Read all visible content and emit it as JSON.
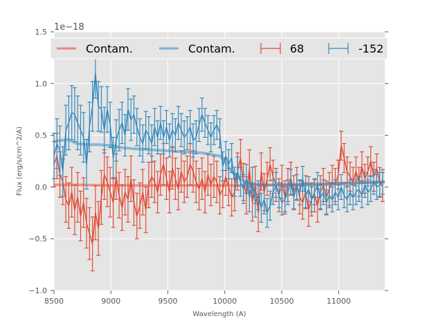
{
  "chart_data": {
    "type": "line",
    "title": "",
    "xlabel": "Wavelength (A)",
    "ylabel": "Flux (erg/s/cm^2/A)",
    "y_offset_label": "1e−18",
    "y_scale": 1e-18,
    "xlim": [
      8500,
      11405
    ],
    "ylim": [
      -1.0,
      1.5
    ],
    "xticks": [
      8500,
      9000,
      9500,
      10000,
      10500,
      11000
    ],
    "xtick_labels": [
      "8500",
      "9000",
      "9500",
      "10000",
      "10500",
      "11000"
    ],
    "yticks": [
      -1.0,
      -0.5,
      0.0,
      0.5,
      1.0,
      1.5
    ],
    "ytick_labels": [
      "−1.0",
      "−0.5",
      "0.0",
      "0.5",
      "1.0",
      "1.5"
    ],
    "grid": true,
    "legend_position": "top",
    "legend": [
      {
        "label": "Contam.",
        "kind": "line",
        "color": "#E8877A"
      },
      {
        "label": "Contam.",
        "kind": "line",
        "color": "#7FAFD4"
      },
      {
        "label": "68",
        "kind": "errorbar",
        "color": "#E24A33"
      },
      {
        "label": "-152",
        "kind": "errorbar",
        "color": "#348ABD"
      }
    ],
    "series": [
      {
        "name": "Contam.",
        "kind": "contam",
        "color": "#E24A33",
        "x": [
          8500,
          8700,
          9000,
          9300,
          9600,
          9900,
          10200,
          10500,
          10800,
          11100,
          11405
        ],
        "y": [
          0.02,
          0.02,
          0.015,
          0.015,
          0.015,
          0.015,
          0.015,
          0.02,
          0.03,
          0.04,
          0.05
        ]
      },
      {
        "name": "Contam.",
        "kind": "contam",
        "color": "#348ABD",
        "x": [
          8500,
          8560,
          8620,
          8660,
          8700,
          8800,
          8900,
          9000,
          9100,
          9200,
          9350,
          9500,
          9650,
          9800,
          9900,
          9960,
          10000,
          10040,
          10080,
          10120,
          10160,
          10200,
          10260,
          10350,
          10450,
          10600,
          10800,
          11000,
          11200,
          11405
        ],
        "y": [
          0.44,
          0.45,
          0.46,
          0.44,
          0.42,
          0.41,
          0.41,
          0.4,
          0.38,
          0.37,
          0.36,
          0.35,
          0.34,
          0.33,
          0.31,
          0.3,
          0.25,
          0.18,
          0.13,
          0.09,
          0.06,
          0.04,
          0.03,
          0.02,
          0.02,
          0.02,
          0.02,
          0.03,
          0.04,
          0.05
        ]
      },
      {
        "name": "68",
        "kind": "errorbar",
        "color": "#E24A33",
        "x": [
          8500,
          8526,
          8552,
          8578,
          8604,
          8630,
          8656,
          8682,
          8708,
          8734,
          8760,
          8786,
          8812,
          8838,
          8864,
          8890,
          8916,
          8942,
          8968,
          8994,
          9020,
          9046,
          9072,
          9098,
          9124,
          9150,
          9176,
          9202,
          9228,
          9254,
          9280,
          9306,
          9332,
          9358,
          9384,
          9410,
          9436,
          9462,
          9488,
          9514,
          9540,
          9566,
          9592,
          9618,
          9644,
          9670,
          9696,
          9722,
          9748,
          9774,
          9800,
          9826,
          9852,
          9878,
          9904,
          9930,
          9956,
          9982,
          10008,
          10034,
          10060,
          10086,
          10112,
          10138,
          10164,
          10190,
          10216,
          10242,
          10268,
          10294,
          10320,
          10346,
          10372,
          10398,
          10424,
          10450,
          10476,
          10502,
          10528,
          10554,
          10580,
          10606,
          10632,
          10658,
          10684,
          10710,
          10736,
          10762,
          10788,
          10814,
          10840,
          10866,
          10892,
          10918,
          10944,
          10970,
          10996,
          11022,
          11048,
          11074,
          11100,
          11126,
          11152,
          11178,
          11204,
          11230,
          11256,
          11282,
          11308,
          11334,
          11360,
          11386
        ],
        "y": [
          0.22,
          0.3,
          0.12,
          0.05,
          -0.12,
          -0.18,
          -0.05,
          -0.22,
          -0.1,
          -0.28,
          -0.15,
          -0.35,
          -0.45,
          -0.55,
          -0.25,
          -0.4,
          -0.1,
          0.12,
          0.05,
          -0.05,
          -0.15,
          0.1,
          -0.08,
          -0.2,
          -0.05,
          -0.12,
          0.08,
          -0.15,
          -0.28,
          -0.18,
          -0.05,
          -0.22,
          0.02,
          0.1,
          0.05,
          -0.05,
          0.12,
          0.22,
          0.08,
          -0.05,
          0.18,
          0.08,
          -0.02,
          0.15,
          0.05,
          0.1,
          0.22,
          0.15,
          0.05,
          -0.02,
          0.08,
          -0.05,
          0.12,
          0.02,
          0.1,
          0.05,
          -0.08,
          -0.02,
          0.1,
          0.0,
          -0.1,
          -0.05,
          0.15,
          0.28,
          0.05,
          -0.08,
          0.18,
          -0.15,
          0.02,
          -0.25,
          0.15,
          -0.05,
          0.08,
          0.22,
          0.1,
          0.02,
          -0.08,
          0.05,
          -0.1,
          0.02,
          0.08,
          -0.05,
          0.03,
          -0.1,
          -0.15,
          -0.05,
          -0.22,
          -0.12,
          -0.08,
          -0.18,
          -0.05,
          0.02,
          -0.1,
          -0.02,
          0.05,
          0.02,
          0.12,
          0.4,
          0.28,
          0.15,
          0.1,
          0.05,
          0.15,
          0.05,
          0.2,
          0.08,
          0.15,
          0.25,
          0.1,
          0.18,
          0.05,
          0.0
        ],
        "err": [
          0.22,
          0.22,
          0.22,
          0.22,
          0.22,
          0.22,
          0.24,
          0.24,
          0.24,
          0.24,
          0.24,
          0.24,
          0.25,
          0.26,
          0.26,
          0.26,
          0.26,
          0.24,
          0.24,
          0.24,
          0.24,
          0.22,
          0.22,
          0.22,
          0.22,
          0.22,
          0.22,
          0.22,
          0.22,
          0.22,
          0.22,
          0.22,
          0.22,
          0.2,
          0.2,
          0.2,
          0.2,
          0.2,
          0.2,
          0.2,
          0.2,
          0.2,
          0.2,
          0.2,
          0.2,
          0.2,
          0.2,
          0.2,
          0.2,
          0.2,
          0.2,
          0.2,
          0.2,
          0.2,
          0.2,
          0.2,
          0.18,
          0.18,
          0.18,
          0.18,
          0.18,
          0.18,
          0.18,
          0.18,
          0.18,
          0.18,
          0.18,
          0.18,
          0.18,
          0.18,
          0.18,
          0.18,
          0.16,
          0.16,
          0.16,
          0.16,
          0.16,
          0.16,
          0.16,
          0.16,
          0.16,
          0.16,
          0.16,
          0.16,
          0.16,
          0.16,
          0.16,
          0.16,
          0.16,
          0.16,
          0.16,
          0.16,
          0.16,
          0.16,
          0.16,
          0.16,
          0.14,
          0.14,
          0.14,
          0.14,
          0.14,
          0.14,
          0.14,
          0.14,
          0.14,
          0.14,
          0.14,
          0.14,
          0.14,
          0.14,
          0.14,
          0.14
        ]
      },
      {
        "name": "-152",
        "kind": "errorbar",
        "color": "#348ABD",
        "x": [
          8500,
          8526,
          8552,
          8578,
          8604,
          8630,
          8656,
          8682,
          8708,
          8734,
          8760,
          8786,
          8812,
          8838,
          8864,
          8890,
          8916,
          8942,
          8968,
          8994,
          9020,
          9046,
          9072,
          9098,
          9124,
          9150,
          9176,
          9202,
          9228,
          9254,
          9280,
          9306,
          9332,
          9358,
          9384,
          9410,
          9436,
          9462,
          9488,
          9514,
          9540,
          9566,
          9592,
          9618,
          9644,
          9670,
          9696,
          9722,
          9748,
          9774,
          9800,
          9826,
          9852,
          9878,
          9904,
          9930,
          9956,
          9982,
          10008,
          10034,
          10060,
          10086,
          10112,
          10138,
          10164,
          10190,
          10216,
          10242,
          10268,
          10294,
          10320,
          10346,
          10372,
          10398,
          10424,
          10450,
          10476,
          10502,
          10528,
          10554,
          10580,
          10606,
          10632,
          10658,
          10684,
          10710,
          10736,
          10762,
          10788,
          10814,
          10840,
          10866,
          10892,
          10918,
          10944,
          10970,
          10996,
          11022,
          11048,
          11074,
          11100,
          11126,
          11152,
          11178,
          11204,
          11230,
          11256,
          11282,
          11308,
          11334,
          11360,
          11386
        ],
        "y": [
          0.3,
          0.42,
          0.35,
          0.15,
          0.55,
          0.62,
          0.72,
          0.7,
          0.62,
          0.55,
          0.48,
          0.22,
          0.58,
          0.78,
          1.1,
          0.78,
          0.75,
          0.55,
          0.75,
          0.6,
          0.28,
          0.45,
          0.55,
          0.62,
          0.5,
          0.75,
          0.65,
          0.7,
          0.58,
          0.48,
          0.42,
          0.55,
          0.5,
          0.42,
          0.58,
          0.48,
          0.62,
          0.48,
          0.58,
          0.45,
          0.55,
          0.5,
          0.62,
          0.55,
          0.48,
          0.52,
          0.58,
          0.45,
          0.48,
          0.6,
          0.7,
          0.62,
          0.55,
          0.48,
          0.55,
          0.6,
          0.52,
          0.2,
          0.3,
          0.22,
          0.28,
          0.05,
          0.15,
          0.05,
          -0.02,
          0.08,
          -0.1,
          0.05,
          -0.15,
          -0.08,
          -0.2,
          -0.12,
          -0.25,
          -0.18,
          -0.05,
          0.02,
          -0.08,
          -0.15,
          -0.12,
          -0.05,
          0.05,
          -0.1,
          0.0,
          -0.05,
          0.08,
          -0.08,
          -0.02,
          -0.12,
          -0.05,
          0.02,
          -0.1,
          -0.05,
          -0.15,
          -0.08,
          -0.12,
          -0.05,
          -0.1,
          0.0,
          -0.08,
          -0.12,
          -0.05,
          -0.1,
          -0.05,
          -0.02,
          -0.08,
          0.02,
          -0.05,
          -0.02,
          0.05,
          0.0,
          0.02,
          0.05
        ],
        "err": [
          0.22,
          0.24,
          0.24,
          0.24,
          0.24,
          0.26,
          0.26,
          0.26,
          0.26,
          0.24,
          0.24,
          0.24,
          0.24,
          0.24,
          0.24,
          0.24,
          0.22,
          0.22,
          0.22,
          0.22,
          0.2,
          0.2,
          0.2,
          0.2,
          0.2,
          0.2,
          0.2,
          0.18,
          0.18,
          0.18,
          0.18,
          0.18,
          0.18,
          0.18,
          0.18,
          0.16,
          0.16,
          0.16,
          0.16,
          0.16,
          0.16,
          0.16,
          0.16,
          0.16,
          0.16,
          0.16,
          0.16,
          0.16,
          0.16,
          0.16,
          0.16,
          0.14,
          0.14,
          0.14,
          0.14,
          0.14,
          0.14,
          0.14,
          0.14,
          0.14,
          0.14,
          0.14,
          0.14,
          0.14,
          0.14,
          0.14,
          0.14,
          0.14,
          0.14,
          0.14,
          0.14,
          0.14,
          0.14,
          0.14,
          0.12,
          0.12,
          0.12,
          0.12,
          0.12,
          0.12,
          0.12,
          0.12,
          0.12,
          0.12,
          0.12,
          0.12,
          0.12,
          0.12,
          0.12,
          0.12,
          0.12,
          0.12,
          0.12,
          0.12,
          0.12,
          0.12,
          0.12,
          0.12,
          0.12,
          0.12,
          0.12,
          0.12,
          0.12,
          0.12,
          0.12,
          0.12,
          0.12,
          0.12,
          0.12,
          0.12,
          0.12,
          0.12
        ]
      }
    ]
  }
}
